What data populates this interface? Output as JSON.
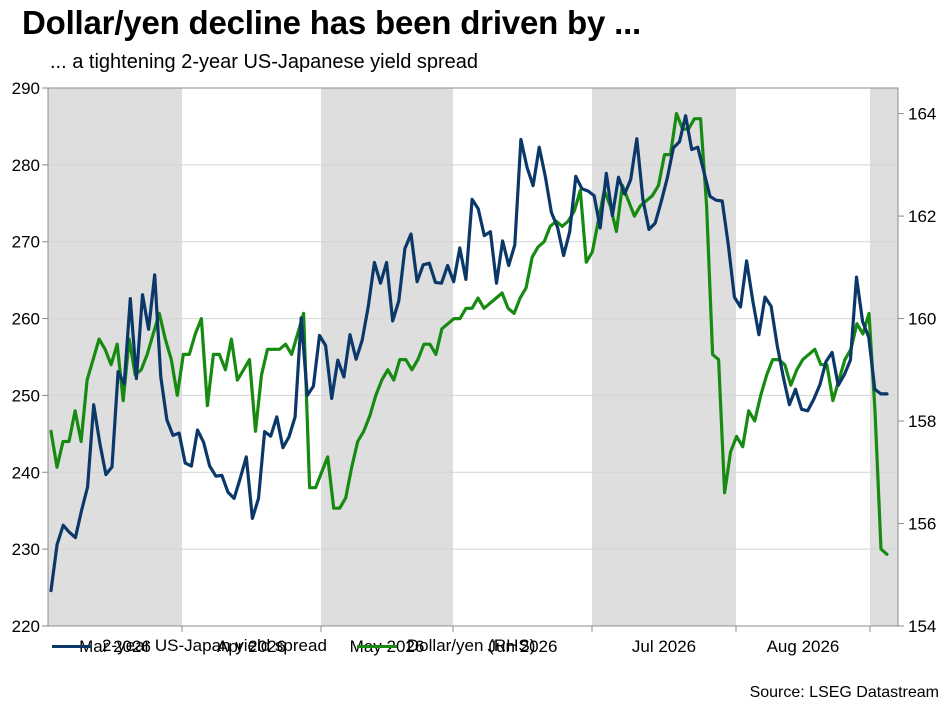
{
  "title": "Dollar/yen decline has been driven by ...",
  "subtitle": "... a tightening 2-year US-Japanese yield spread",
  "source": "Source: LSEG Datastream",
  "colors": {
    "spread": "#0b3868",
    "usdjpy": "#178a12",
    "band": "#dedede",
    "grid": "#d4d4d4"
  },
  "chart_data": {
    "type": "line",
    "x_ticks": [
      "Mar 2026",
      "Apr 2026",
      "May 2026",
      "Jun 2026",
      "Jul 2026",
      "Aug 2026"
    ],
    "left_axis": {
      "ylim": [
        220,
        290
      ],
      "ticks": [
        "220",
        "230",
        "240",
        "250",
        "260",
        "270",
        "280",
        "290"
      ]
    },
    "right_axis": {
      "ylim": [
        154,
        164.5
      ],
      "ticks": [
        "154",
        "156",
        "158",
        "160",
        "162",
        "164"
      ]
    },
    "grid": true,
    "legend_placement": "bottom",
    "series": [
      {
        "name": "2-year US-Japan yield spread",
        "axis": "left",
        "values": [
          224.6,
          230.6,
          233.1,
          232.2,
          231.5,
          235.0,
          238.1,
          248.8,
          243.8,
          239.7,
          240.7,
          253.1,
          251.5,
          262.6,
          252.2,
          263.1,
          258.6,
          265.7,
          252.4,
          246.8,
          244.8,
          245.1,
          241.2,
          240.8,
          245.5,
          243.9,
          240.8,
          239.5,
          239.6,
          237.4,
          236.6,
          239.2,
          242.0,
          234.0,
          236.6,
          245.3,
          244.7,
          247.2,
          243.2,
          244.6,
          247.2,
          260.1,
          250.0,
          251.2,
          257.8,
          256.5,
          249.6,
          254.6,
          252.4,
          257.9,
          254.7,
          257.2,
          261.6,
          267.3,
          264.6,
          267.3,
          259.7,
          262.3,
          269.1,
          271.0,
          264.8,
          267.0,
          267.2,
          264.7,
          264.6,
          266.9,
          264.8,
          269.2,
          265.1,
          275.5,
          274.3,
          270.8,
          271.3,
          264.6,
          270.1,
          266.9,
          269.6,
          283.3,
          279.7,
          277.3,
          282.3,
          278.5,
          273.8,
          271.9,
          268.2,
          271.3,
          278.5,
          276.9,
          276.6,
          276.0,
          271.8,
          278.9,
          273.4,
          278.4,
          276.2,
          278.1,
          283.4,
          275.5,
          271.6,
          272.4,
          275.2,
          278.3,
          282.2,
          283.0,
          286.4,
          282.0,
          282.3,
          279.1,
          275.9,
          275.4,
          275.3,
          269.6,
          262.8,
          261.5,
          267.5,
          262.3,
          257.9,
          262.8,
          261.6,
          256.5,
          252.4,
          248.8,
          250.8,
          248.2,
          248.0,
          249.5,
          251.4,
          254.4,
          255.6,
          251.3,
          252.7,
          254.6,
          265.4,
          259.6,
          257.6,
          250.8,
          250.2,
          250.2
        ]
      },
      {
        "name": "Dollar/yen (RHS)",
        "axis": "right",
        "values": [
          157.8,
          157.1,
          157.6,
          157.6,
          158.2,
          157.6,
          158.8,
          159.2,
          159.6,
          159.4,
          159.1,
          159.5,
          158.4,
          159.6,
          158.9,
          159.0,
          159.3,
          159.7,
          160.1,
          159.6,
          159.2,
          158.5,
          159.3,
          159.3,
          159.7,
          160.0,
          158.3,
          159.3,
          159.3,
          159.0,
          159.6,
          158.8,
          159.0,
          159.2,
          157.8,
          158.9,
          159.4,
          159.4,
          159.4,
          159.5,
          159.3,
          159.7,
          160.1,
          156.7,
          156.7,
          157.0,
          157.3,
          156.3,
          156.3,
          156.5,
          157.1,
          157.6,
          157.8,
          158.1,
          158.5,
          158.8,
          159.0,
          158.8,
          159.2,
          159.2,
          159.0,
          159.2,
          159.5,
          159.5,
          159.3,
          159.8,
          159.9,
          160.0,
          160.0,
          160.2,
          160.2,
          160.4,
          160.2,
          160.3,
          160.4,
          160.5,
          160.2,
          160.1,
          160.4,
          160.6,
          161.2,
          161.4,
          161.5,
          161.8,
          161.9,
          161.8,
          161.9,
          162.1,
          162.5,
          161.1,
          161.3,
          161.9,
          162.5,
          162.2,
          161.7,
          162.6,
          162.3,
          162.0,
          162.2,
          162.3,
          162.4,
          162.6,
          163.2,
          163.2,
          164.0,
          163.7,
          163.7,
          163.9,
          163.9,
          162.2,
          159.3,
          159.2,
          156.6,
          157.4,
          157.7,
          157.5,
          158.2,
          158.0,
          158.5,
          158.9,
          159.2,
          159.2,
          159.1,
          158.7,
          159.0,
          159.2,
          159.3,
          159.4,
          159.1,
          159.1,
          158.4,
          158.8,
          159.2,
          159.4,
          159.9,
          159.7,
          160.1,
          158.2,
          155.5,
          155.4
        ]
      }
    ]
  }
}
